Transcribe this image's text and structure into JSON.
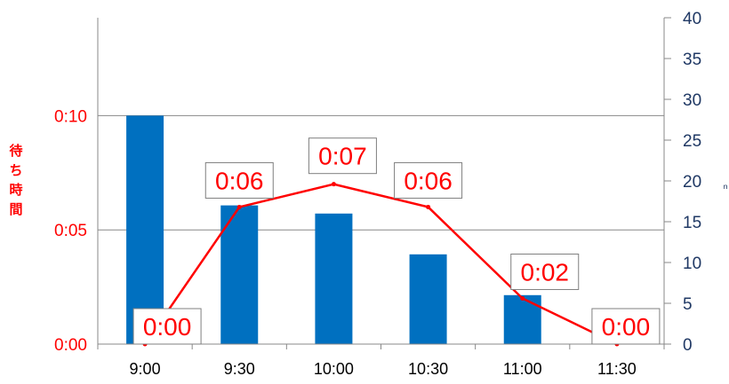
{
  "chart_data": {
    "type": "bar",
    "categories": [
      "9:00",
      "9:30",
      "10:00",
      "10:30",
      "11:00",
      "11:30"
    ],
    "series": [
      {
        "type": "bar",
        "axis": "right",
        "color": "#0070c0",
        "values": [
          28,
          17,
          16,
          11,
          6,
          1
        ]
      },
      {
        "type": "line",
        "axis": "left",
        "color": "#ff0000",
        "values": [
          "0:00",
          "0:06",
          "0:07",
          "0:06",
          "0:02",
          "0:00"
        ],
        "data_labels": [
          "0:00",
          "0:06",
          "0:07",
          "0:06",
          "0:02",
          "0:00"
        ]
      }
    ],
    "left_axis": {
      "label": "待ち時間",
      "ticks": [
        "0:00",
        "0:05",
        "0:10"
      ],
      "range_minutes": [
        0,
        10
      ]
    },
    "right_axis": {
      "label": "ｎ",
      "ticks": [
        "0",
        "5",
        "10",
        "15",
        "20",
        "25",
        "30",
        "35",
        "40"
      ],
      "range": [
        0,
        40
      ]
    },
    "grid": true,
    "legend": "none"
  }
}
